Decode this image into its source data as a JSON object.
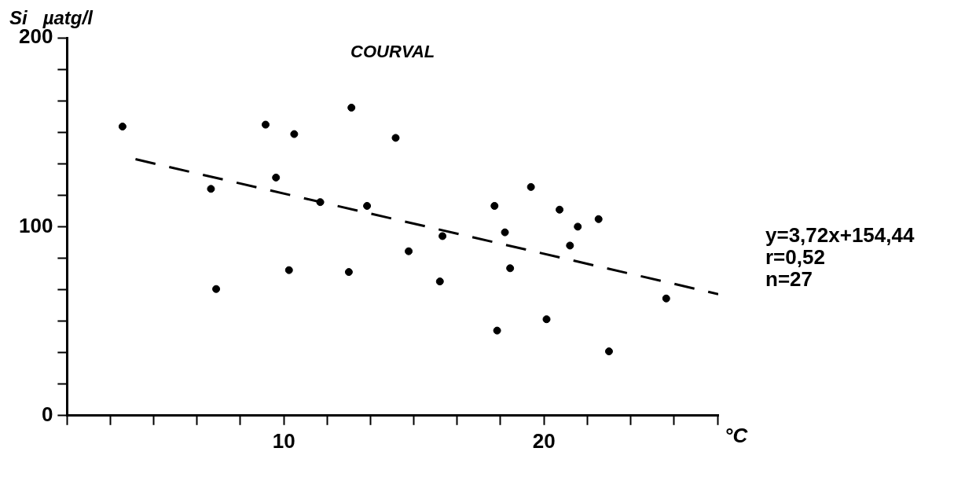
{
  "chart_data": {
    "type": "scatter",
    "title": "COURVAL",
    "xlabel": "°C",
    "ylabel": "Si   µatg/l",
    "annotations": [
      "y=3,72x+154,44",
      "r=0,52",
      "n=27"
    ],
    "xlim": [
      1.67,
      26.7
    ],
    "xticks": [
      {
        "value": 1.67,
        "label": null
      },
      {
        "value": 3.33,
        "label": null
      },
      {
        "value": 5,
        "label": null
      },
      {
        "value": 6.67,
        "label": null
      },
      {
        "value": 8.33,
        "label": null
      },
      10,
      {
        "value": 11.67,
        "label": null
      },
      {
        "value": 13.33,
        "label": null
      },
      {
        "value": 15,
        "label": null
      },
      {
        "value": 16.67,
        "label": null
      },
      {
        "value": 18.33,
        "label": null
      },
      20,
      {
        "value": 21.67,
        "label": null
      },
      {
        "value": 23.33,
        "label": null
      },
      {
        "value": 25,
        "label": null
      },
      {
        "value": 26.67,
        "label": null
      }
    ],
    "ylim": [
      0,
      200
    ],
    "yticks": [
      0,
      {
        "value": 16.67,
        "label": null
      },
      {
        "value": 33.33,
        "label": null
      },
      {
        "value": 50,
        "label": null
      },
      {
        "value": 66.67,
        "label": null
      },
      {
        "value": 83.33,
        "label": null
      },
      100,
      {
        "value": 116.67,
        "label": null
      },
      {
        "value": 133.33,
        "label": null
      },
      {
        "value": 150,
        "label": null
      },
      {
        "value": 166.67,
        "label": null
      },
      {
        "value": 183.33,
        "label": null
      },
      200
    ],
    "grid": false,
    "legend": false,
    "series": [
      {
        "color": "#000000",
        "marker": "circle",
        "x": [
          3.8,
          9.3,
          12.6,
          10.4,
          14.3,
          9.7,
          7.2,
          11.4,
          13.2,
          19.5,
          18.1,
          20.6,
          22.1,
          21.3,
          18.5,
          16.1,
          21.0,
          14.8,
          10.2,
          12.5,
          18.7,
          16.0,
          7.4,
          24.7,
          20.1,
          18.2,
          22.5
        ],
        "values": [
          153,
          154,
          163,
          149,
          147,
          126,
          120,
          113,
          111,
          121,
          111,
          109,
          104,
          100,
          97,
          95,
          90,
          87,
          77,
          76,
          78,
          71,
          67,
          62,
          51,
          45,
          34
        ]
      },
      {
        "type": "line",
        "color": "#000000",
        "marker": "none",
        "line_style": "dashed",
        "x": [
          4.3,
          26.7
        ],
        "values": [
          135.7,
          64.3
        ]
      }
    ]
  }
}
